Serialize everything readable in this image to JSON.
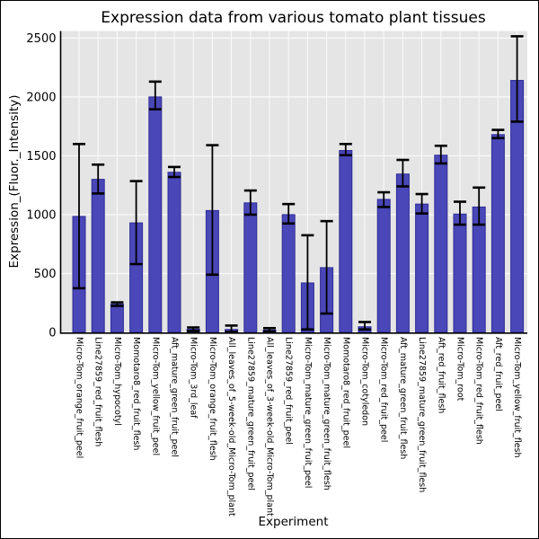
{
  "chart_data": {
    "type": "bar",
    "title": "Expression data from various tomato plant tissues",
    "xlabel": "Experiment",
    "ylabel": "Expression_(Fluor._Intensity)",
    "legend": null,
    "grid": true,
    "yticks": [
      0,
      500,
      1000,
      1500,
      2000,
      2500
    ],
    "ylim": [
      0,
      2560
    ],
    "categories": [
      "Micro-Tom_orange_fruit_peel",
      "Line27859_red_fruit_flesh",
      "Micro-Tom_hypocotyl",
      "Momotaro8_red_fruit_flesh",
      "Micro-Tom_yellow_fruit_peel",
      "Aft_mature_green_fruit_peel",
      "Micro-Tom_3rd_leaf",
      "Micro-Tom_orange_fruit_flesh",
      "All_leaves_of_5-week-old_Micro-Tom_plant",
      "Line27859_mature_green_fruit_peel",
      "All_leaves_of_3-week-old_Micro-Tom_plant",
      "Line27859_red_fruit_peel",
      "Micro-Tom_mature_green_fruit_peel",
      "Micro-Tom_mature_green_fruit_flesh",
      "Momotaro8_red_fruit_peel",
      "Micro-Tom_cotyledon",
      "Micro-Tom_red_fruit_peel",
      "Aft_mature_green_fruit_flesh",
      "Line27859_mature_green_fruit_flesh",
      "Aft_red_fruit_flesh",
      "Micro-Tom_root",
      "Micro-Tom_red_fruit_flesh",
      "Aft_red_fruit_peel",
      "Micro-Tom_yellow_fruit_flesh"
    ],
    "values": [
      985,
      1300,
      240,
      930,
      2000,
      1360,
      27,
      1035,
      25,
      1100,
      20,
      1000,
      420,
      550,
      1545,
      48,
      1130,
      1345,
      1090,
      1505,
      1005,
      1065,
      1680,
      2140
    ],
    "error_low": [
      375,
      1180,
      225,
      580,
      1895,
      1320,
      12,
      490,
      5,
      1000,
      8,
      925,
      25,
      160,
      1505,
      25,
      1065,
      1240,
      1010,
      1435,
      915,
      915,
      1650,
      1790
    ],
    "error_high": [
      1600,
      1425,
      255,
      1285,
      2130,
      1405,
      42,
      1590,
      58,
      1205,
      36,
      1090,
      825,
      945,
      1600,
      88,
      1190,
      1465,
      1175,
      1585,
      1110,
      1230,
      1720,
      2515
    ],
    "colors": {
      "bar_fill": "#4a47b8",
      "bar_edge": "#2f2d96",
      "error_bar": "#000000",
      "plot_background": "#e5e5e5",
      "grid_line": "#fafafa",
      "figure_background": "#ffffff",
      "axis_spine": "#000000",
      "text": "#000000"
    }
  }
}
